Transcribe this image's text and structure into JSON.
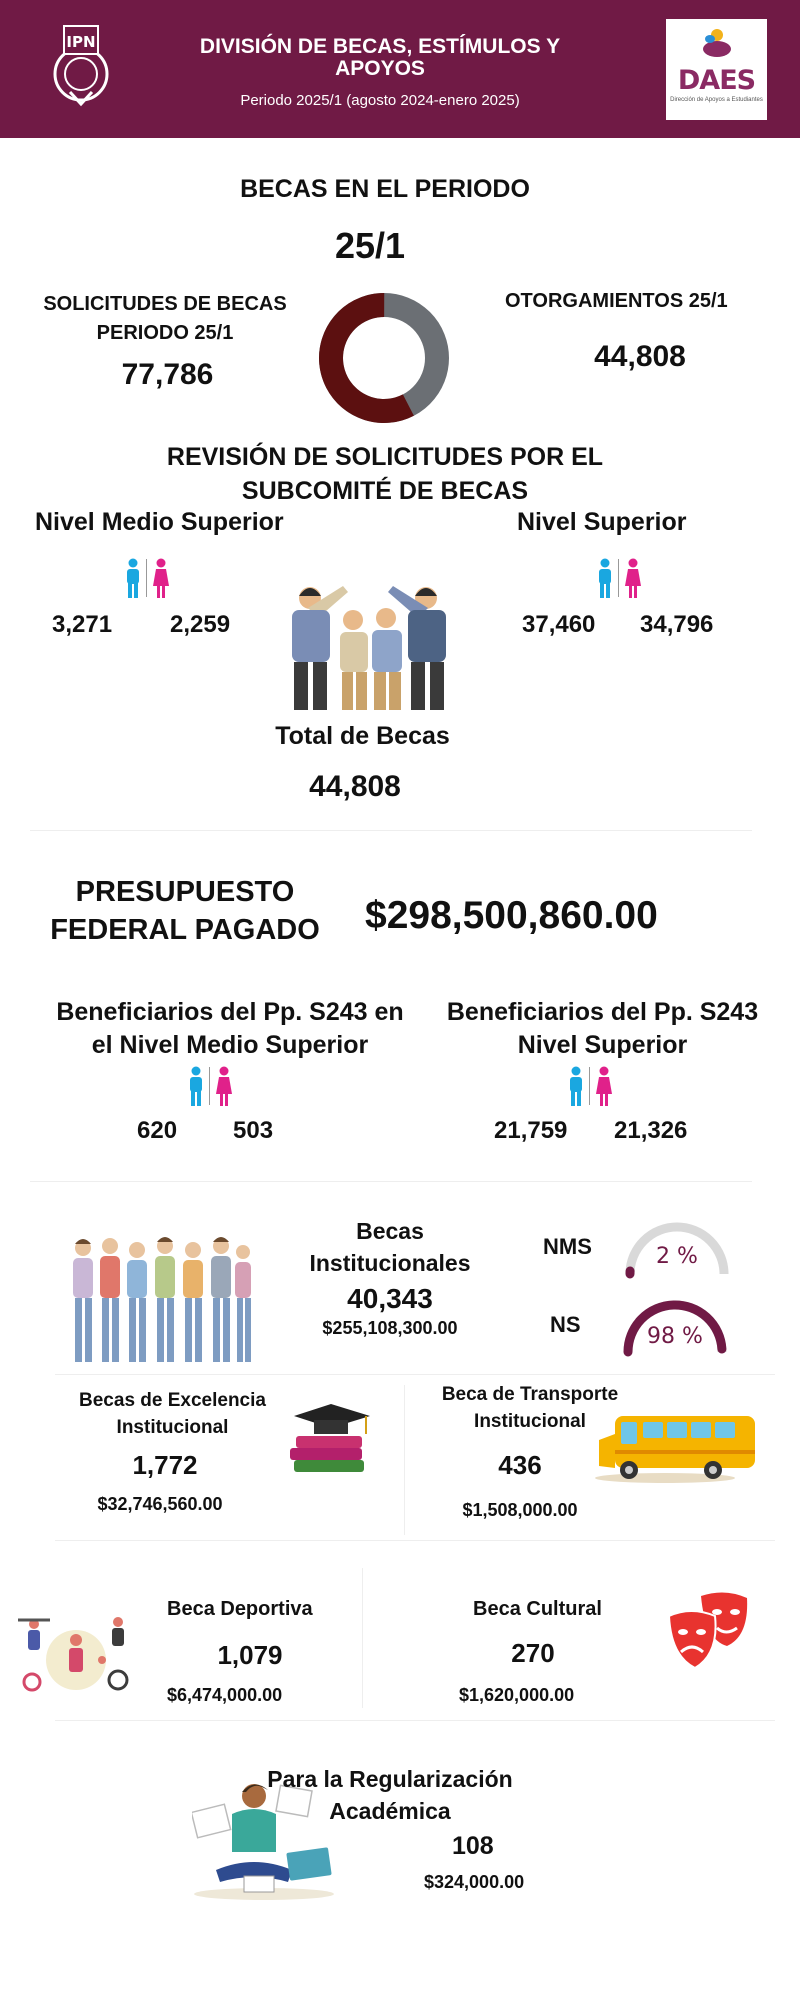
{
  "header": {
    "title": "DIVISIÓN DE BECAS, ESTÍMULOS Y APOYOS",
    "period": "Periodo 2025/1 (agosto 2024-enero 2025)",
    "ipn_logo_text": "IPN",
    "daes_logo_text": "DAES",
    "daes_logo_subtext": "Dirección de Apoyos a Estudiantes"
  },
  "becas_periodo": {
    "title": "BECAS EN EL PERIODO",
    "period": "25/1",
    "solicitudes_label": "SOLICITUDES DE BECAS PERIODO 25/1",
    "solicitudes_value": "77,786",
    "otorgamientos_label": "OTORGAMIENTOS 25/1",
    "otorgamientos_value": "44,808",
    "donut": {
      "granted": 44808,
      "total": 77786,
      "colors": [
        "#5c1010",
        "#6b6f74"
      ]
    }
  },
  "revision": {
    "title": "REVISIÓN DE SOLICITUDES POR EL SUBCOMITÉ DE BECAS",
    "nms_label": "Nivel Medio Superior",
    "nms_male": "3,271",
    "nms_female": "2,259",
    "ns_label": "Nivel Superior",
    "ns_male": "37,460",
    "ns_female": "34,796",
    "total_label": "Total de Becas",
    "total_value": "44,808"
  },
  "presupuesto": {
    "label": "PRESUPUESTO FEDERAL PAGADO",
    "value": "$298,500,860.00"
  },
  "s243": {
    "nms_label": "Beneficiarios del Pp. S243 en el Nivel Medio Superior",
    "nms_male": "620",
    "nms_female": "503",
    "ns_label": "Beneficiarios del Pp. S243 Nivel Superior",
    "ns_male": "21,759",
    "ns_female": "21,326"
  },
  "institucionales": {
    "label": "Becas Institucionales",
    "count": "40,343",
    "amount": "$255,108,300.00",
    "nms_label": "NMS",
    "nms_percent": "2 %",
    "nms_fraction": 0.02,
    "ns_label": "NS",
    "ns_percent": "98 %",
    "ns_fraction": 0.98
  },
  "excelencia": {
    "label": "Becas de Excelencia Institucional",
    "count": "1,772",
    "amount": "$32,746,560.00"
  },
  "transporte": {
    "label": "Beca de Transporte Institucional",
    "count": "436",
    "amount": "$1,508,000.00"
  },
  "deportiva": {
    "label": "Beca Deportiva",
    "count": "1,079",
    "amount": "$6,474,000.00"
  },
  "cultural": {
    "label": "Beca Cultural",
    "count": "270",
    "amount": "$1,620,000.00"
  },
  "regularizacion": {
    "label": "Para la Regularización Académica",
    "count": "108",
    "amount": "$324,000.00"
  },
  "colors": {
    "header_bg": "#701a45",
    "male": "#1aa7e0",
    "female": "#e0218a",
    "gauge_track": "#d9d9d9",
    "gauge_fill": "#701a45"
  }
}
